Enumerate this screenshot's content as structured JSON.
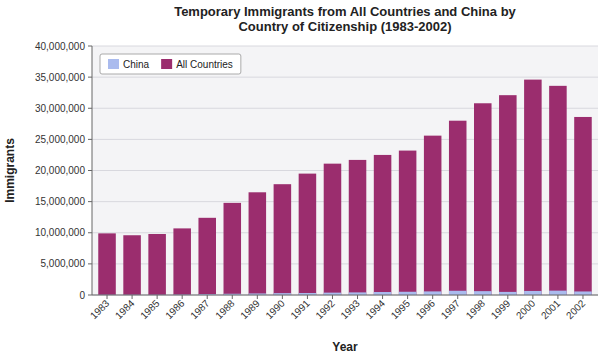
{
  "chart_data": {
    "type": "bar",
    "title": "Temporary Immigrants from All Countries and China by\nCountry of Citizenship (1983-2002)",
    "x_label": "Year",
    "y_label": "Immigrants",
    "categories": [
      "1983",
      "1984",
      "1985",
      "1986",
      "1987",
      "1988",
      "1989",
      "1990",
      "1991",
      "1992",
      "1993",
      "1994",
      "1995",
      "1996",
      "1997",
      "1998",
      "1999",
      "2000",
      "2001",
      "2002"
    ],
    "series": [
      {
        "name": "All Countries",
        "color": "#9B2D6E",
        "values": [
          9900000,
          9600000,
          9800000,
          10700000,
          12400000,
          14800000,
          16500000,
          17800000,
          19500000,
          21100000,
          21700000,
          22500000,
          23200000,
          25600000,
          28000000,
          30800000,
          32100000,
          34600000,
          33600000,
          28600000
        ]
      },
      {
        "name": "China",
        "color": "#AABBEE",
        "values": [
          50000,
          50000,
          50000,
          80000,
          150000,
          200000,
          250000,
          300000,
          320000,
          380000,
          420000,
          480000,
          520000,
          580000,
          680000,
          620000,
          500000,
          650000,
          700000,
          570000
        ]
      }
    ],
    "ylim": [
      0,
      40000000
    ],
    "yticks": [
      0,
      {
        "value": 5000000,
        "label": "5,000,000"
      },
      {
        "value": 10000000,
        "label": "10,000,000"
      },
      {
        "value": 15000000,
        "label": "15,000,000"
      },
      {
        "value": 20000000,
        "label": "20,000,000"
      },
      {
        "value": 25000000,
        "label": "25,000,000"
      },
      {
        "value": 30000000,
        "label": "30,000,000"
      },
      {
        "value": 35000000,
        "label": "35,000,000"
      },
      {
        "value": 40000000,
        "label": "40,000,000"
      }
    ],
    "grid": true,
    "legend": "upper left"
  }
}
